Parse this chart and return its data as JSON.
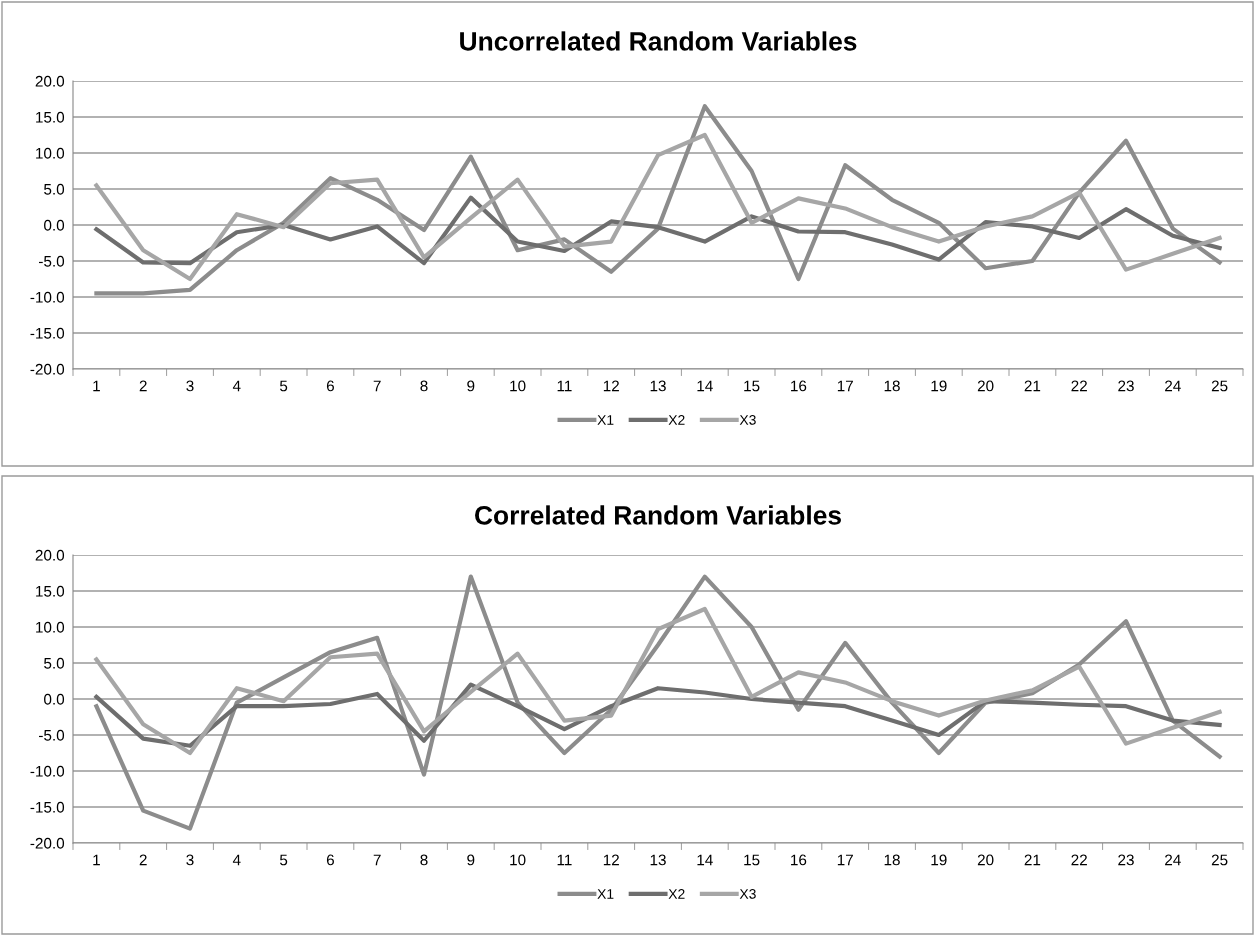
{
  "chart_data": [
    {
      "type": "line",
      "title": "Uncorrelated Random Variables",
      "categories": [
        "1",
        "2",
        "3",
        "4",
        "5",
        "6",
        "7",
        "8",
        "9",
        "10",
        "11",
        "12",
        "13",
        "14",
        "15",
        "16",
        "17",
        "18",
        "19",
        "20",
        "21",
        "22",
        "23",
        "24",
        "25"
      ],
      "series": [
        {
          "name": "X1",
          "color": "#8c8c8c",
          "values": [
            -9.5,
            -9.5,
            -9.0,
            -3.5,
            0.3,
            6.5,
            3.5,
            -0.7,
            9.5,
            -3.5,
            -2.0,
            -6.5,
            -0.5,
            16.5,
            7.5,
            -7.5,
            8.3,
            3.5,
            0.3,
            -6.0,
            -5.0,
            4.5,
            11.7,
            -0.5,
            -5.2
          ]
        },
        {
          "name": "X2",
          "color": "#6e6e6e",
          "values": [
            -0.6,
            -5.2,
            -5.3,
            -1.0,
            0.0,
            -2.0,
            -0.2,
            -5.3,
            3.8,
            -2.3,
            -3.6,
            0.5,
            -0.3,
            -2.3,
            1.2,
            -0.9,
            -1.0,
            -2.7,
            -4.8,
            0.4,
            -0.2,
            -1.8,
            2.2,
            -1.5,
            -3.2
          ]
        },
        {
          "name": "X3",
          "color": "#a6a6a6",
          "values": [
            5.5,
            -3.5,
            -7.5,
            1.5,
            -0.3,
            5.8,
            6.3,
            -4.5,
            1.0,
            6.3,
            -3.0,
            -2.3,
            9.7,
            12.5,
            0.3,
            3.7,
            2.3,
            -0.3,
            -2.3,
            -0.2,
            1.2,
            4.5,
            -6.2,
            -4.0,
            -1.8
          ]
        }
      ],
      "ylim": [
        -20,
        20
      ],
      "yticks": [
        {
          "value": -20,
          "label": "-20.0"
        },
        {
          "value": -15,
          "label": "-15.0"
        },
        {
          "value": -10,
          "label": "-10.0"
        },
        {
          "value": -5,
          "label": "-5.0"
        },
        {
          "value": 0,
          "label": "0.0"
        },
        {
          "value": 5,
          "label": "5.0"
        },
        {
          "value": 10,
          "label": "10.0"
        },
        {
          "value": 15,
          "label": "15.0"
        },
        {
          "value": 20,
          "label": "20.0"
        }
      ],
      "grid": "y",
      "legend": "bottom",
      "marker": "none",
      "line_style": "solid"
    },
    {
      "type": "line",
      "title": "Correlated Random Variables",
      "categories": [
        "1",
        "2",
        "3",
        "4",
        "5",
        "6",
        "7",
        "8",
        "9",
        "10",
        "11",
        "12",
        "13",
        "14",
        "15",
        "16",
        "17",
        "18",
        "19",
        "20",
        "21",
        "22",
        "23",
        "24",
        "25"
      ],
      "series": [
        {
          "name": "X1",
          "color": "#8c8c8c",
          "values": [
            -1.0,
            -15.5,
            -18.0,
            -0.5,
            3.0,
            6.5,
            8.5,
            -10.5,
            17.0,
            -0.5,
            -7.5,
            -1.5,
            7.5,
            17.0,
            10.0,
            -1.5,
            7.8,
            -0.5,
            -7.5,
            -0.5,
            0.8,
            4.8,
            10.8,
            -3.0,
            -8.0
          ]
        },
        {
          "name": "X2",
          "color": "#6e6e6e",
          "values": [
            0.3,
            -5.5,
            -6.5,
            -1.0,
            -1.0,
            -0.7,
            0.7,
            -5.8,
            2.0,
            -1.0,
            -4.2,
            -1.0,
            1.5,
            0.9,
            0.0,
            -0.5,
            -1.0,
            -3.0,
            -5.0,
            -0.3,
            -0.5,
            -0.8,
            -1.0,
            -3.0,
            -3.6
          ]
        },
        {
          "name": "X3",
          "color": "#a6a6a6",
          "values": [
            5.5,
            -3.5,
            -7.5,
            1.5,
            -0.3,
            5.8,
            6.3,
            -4.5,
            1.0,
            6.3,
            -3.0,
            -2.3,
            9.7,
            12.5,
            0.3,
            3.7,
            2.3,
            -0.3,
            -2.3,
            -0.2,
            1.2,
            4.5,
            -6.2,
            -4.0,
            -1.8
          ]
        }
      ],
      "ylim": [
        -20,
        20
      ],
      "yticks": [
        {
          "value": -20,
          "label": "-20.0"
        },
        {
          "value": -15,
          "label": "-15.0"
        },
        {
          "value": -10,
          "label": "-10.0"
        },
        {
          "value": -5,
          "label": "-5.0"
        },
        {
          "value": 0,
          "label": "0.0"
        },
        {
          "value": 5,
          "label": "5.0"
        },
        {
          "value": 10,
          "label": "10.0"
        },
        {
          "value": 15,
          "label": "15.0"
        },
        {
          "value": 20,
          "label": "20.0"
        }
      ],
      "grid": "y",
      "legend": "bottom",
      "marker": "none",
      "line_style": "solid"
    }
  ]
}
